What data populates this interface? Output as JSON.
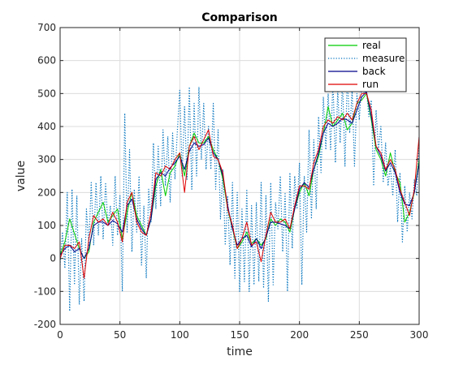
{
  "chart_data": {
    "type": "line",
    "title": "Comparison",
    "xlabel": "time",
    "ylabel": "value",
    "xlim": [
      0,
      300
    ],
    "ylim": [
      -200,
      700
    ],
    "xticks": [
      0,
      50,
      100,
      150,
      200,
      250,
      300
    ],
    "yticks": [
      -200,
      -100,
      0,
      100,
      200,
      300,
      400,
      500,
      600,
      700
    ],
    "grid": true,
    "legend_position": "top-right",
    "series": [
      {
        "name": "real",
        "color": "#00cc00",
        "style": "solid",
        "x": [
          0,
          4,
          8,
          12,
          16,
          20,
          24,
          28,
          32,
          36,
          40,
          44,
          48,
          52,
          56,
          60,
          64,
          68,
          72,
          76,
          80,
          84,
          88,
          92,
          96,
          100,
          104,
          108,
          112,
          116,
          120,
          124,
          128,
          132,
          136,
          140,
          144,
          148,
          152,
          156,
          160,
          164,
          168,
          172,
          176,
          180,
          184,
          188,
          192,
          196,
          200,
          204,
          208,
          212,
          216,
          220,
          224,
          228,
          232,
          236,
          240,
          244,
          248,
          252,
          256,
          260,
          264,
          268,
          272,
          276,
          280,
          284,
          288,
          292,
          296,
          300
        ],
        "y": [
          10,
          50,
          120,
          75,
          30,
          0,
          20,
          110,
          140,
          170,
          110,
          130,
          150,
          60,
          140,
          200,
          130,
          100,
          70,
          120,
          220,
          270,
          190,
          260,
          280,
          320,
          250,
          340,
          380,
          350,
          350,
          370,
          330,
          300,
          240,
          150,
          90,
          30,
          50,
          80,
          45,
          60,
          40,
          60,
          120,
          100,
          120,
          110,
          80,
          150,
          200,
          230,
          190,
          270,
          310,
          380,
          460,
          400,
          420,
          440,
          390,
          410,
          470,
          480,
          500,
          420,
          330,
          300,
          250,
          320,
          260,
          230,
          110,
          140,
          200,
          300
        ]
      },
      {
        "name": "measure",
        "color": "#0072bd",
        "style": "dotted",
        "x": [
          0,
          2,
          4,
          6,
          8,
          10,
          12,
          14,
          16,
          18,
          20,
          22,
          24,
          26,
          28,
          30,
          32,
          34,
          36,
          38,
          40,
          42,
          44,
          46,
          48,
          50,
          52,
          54,
          56,
          58,
          60,
          62,
          64,
          66,
          68,
          70,
          72,
          74,
          76,
          78,
          80,
          82,
          84,
          86,
          88,
          90,
          92,
          94,
          96,
          98,
          100,
          102,
          104,
          106,
          108,
          110,
          112,
          114,
          116,
          118,
          120,
          122,
          124,
          126,
          128,
          130,
          132,
          134,
          136,
          138,
          140,
          142,
          144,
          146,
          148,
          150,
          152,
          154,
          156,
          158,
          160,
          162,
          164,
          166,
          168,
          170,
          172,
          174,
          176,
          178,
          180,
          182,
          184,
          186,
          188,
          190,
          192,
          194,
          196,
          198,
          200,
          202,
          204,
          206,
          208,
          210,
          212,
          214,
          216,
          218,
          220,
          222,
          224,
          226,
          228,
          230,
          232,
          234,
          236,
          238,
          240,
          242,
          244,
          246,
          248,
          250,
          252,
          254,
          256,
          258,
          260,
          262,
          264,
          266,
          268,
          270,
          272,
          274,
          276,
          278,
          280,
          282,
          284,
          286,
          288,
          290,
          292,
          294,
          296,
          298,
          300
        ],
        "y": [
          -20,
          80,
          -30,
          200,
          -160,
          210,
          -80,
          190,
          -140,
          60,
          -130,
          150,
          40,
          230,
          40,
          230,
          70,
          250,
          60,
          230,
          100,
          160,
          40,
          250,
          70,
          190,
          -100,
          440,
          80,
          330,
          20,
          210,
          80,
          250,
          -20,
          160,
          -60,
          210,
          110,
          350,
          150,
          340,
          160,
          390,
          220,
          370,
          170,
          380,
          240,
          390,
          510,
          250,
          460,
          240,
          520,
          210,
          470,
          250,
          520,
          300,
          470,
          270,
          400,
          270,
          470,
          210,
          390,
          120,
          270,
          40,
          190,
          -20,
          230,
          -60,
          200,
          -100,
          150,
          -70,
          210,
          -100,
          160,
          -80,
          170,
          -70,
          230,
          -90,
          190,
          -130,
          230,
          -80,
          170,
          90,
          250,
          20,
          200,
          -100,
          260,
          30,
          250,
          150,
          290,
          -80,
          250,
          80,
          390,
          120,
          360,
          150,
          430,
          260,
          490,
          330,
          500,
          330,
          540,
          290,
          510,
          350,
          540,
          280,
          560,
          380,
          510,
          280,
          500,
          420,
          530,
          500,
          510,
          430,
          480,
          220,
          450,
          330,
          400,
          230,
          350,
          220,
          280,
          190,
          330,
          110,
          260,
          50,
          220,
          80,
          200,
          120,
          240,
          190,
          370
        ]
      },
      {
        "name": "back",
        "color": "#00008b",
        "style": "solid",
        "x": [
          0,
          4,
          8,
          12,
          16,
          20,
          24,
          28,
          32,
          36,
          40,
          44,
          48,
          52,
          56,
          60,
          64,
          68,
          72,
          76,
          80,
          84,
          88,
          92,
          96,
          100,
          104,
          108,
          112,
          116,
          120,
          124,
          128,
          132,
          136,
          140,
          144,
          148,
          152,
          156,
          160,
          164,
          168,
          172,
          176,
          180,
          184,
          188,
          192,
          196,
          200,
          204,
          208,
          212,
          216,
          220,
          224,
          228,
          232,
          236,
          240,
          244,
          248,
          252,
          256,
          260,
          264,
          268,
          272,
          276,
          280,
          284,
          288,
          292,
          296,
          300
        ],
        "y": [
          10,
          30,
          40,
          20,
          30,
          0,
          30,
          100,
          110,
          110,
          100,
          115,
          105,
          80,
          160,
          180,
          120,
          90,
          70,
          120,
          240,
          260,
          250,
          275,
          290,
          310,
          270,
          325,
          350,
          340,
          345,
          365,
          320,
          300,
          250,
          160,
          90,
          40,
          60,
          70,
          35,
          60,
          30,
          65,
          110,
          110,
          105,
          100,
          90,
          150,
          210,
          230,
          215,
          270,
          320,
          380,
          410,
          400,
          410,
          425,
          420,
          410,
          450,
          490,
          505,
          430,
          340,
          310,
          265,
          290,
          260,
          200,
          165,
          160,
          200,
          290
        ]
      },
      {
        "name": "run",
        "color": "#e00000",
        "style": "solid",
        "x": [
          0,
          4,
          8,
          12,
          16,
          20,
          24,
          28,
          32,
          36,
          40,
          44,
          48,
          52,
          56,
          60,
          64,
          68,
          72,
          76,
          80,
          84,
          88,
          92,
          96,
          100,
          104,
          108,
          112,
          116,
          120,
          124,
          128,
          132,
          136,
          140,
          144,
          148,
          152,
          156,
          160,
          164,
          168,
          172,
          176,
          180,
          184,
          188,
          192,
          196,
          200,
          204,
          208,
          212,
          216,
          220,
          224,
          228,
          232,
          236,
          240,
          244,
          248,
          252,
          256,
          260,
          264,
          268,
          272,
          276,
          280,
          284,
          288,
          292,
          296,
          300
        ],
        "y": [
          0,
          40,
          40,
          30,
          50,
          -60,
          60,
          130,
          110,
          120,
          100,
          140,
          110,
          50,
          170,
          200,
          110,
          80,
          70,
          140,
          260,
          250,
          280,
          270,
          300,
          320,
          200,
          340,
          370,
          330,
          360,
          390,
          310,
          300,
          260,
          150,
          100,
          30,
          60,
          110,
          40,
          50,
          -10,
          70,
          140,
          110,
          110,
          120,
          90,
          160,
          220,
          220,
          210,
          290,
          330,
          400,
          420,
          410,
          430,
          420,
          440,
          420,
          470,
          500,
          500,
          450,
          340,
          320,
          270,
          300,
          270,
          210,
          170,
          130,
          210,
          370
        ]
      }
    ]
  }
}
